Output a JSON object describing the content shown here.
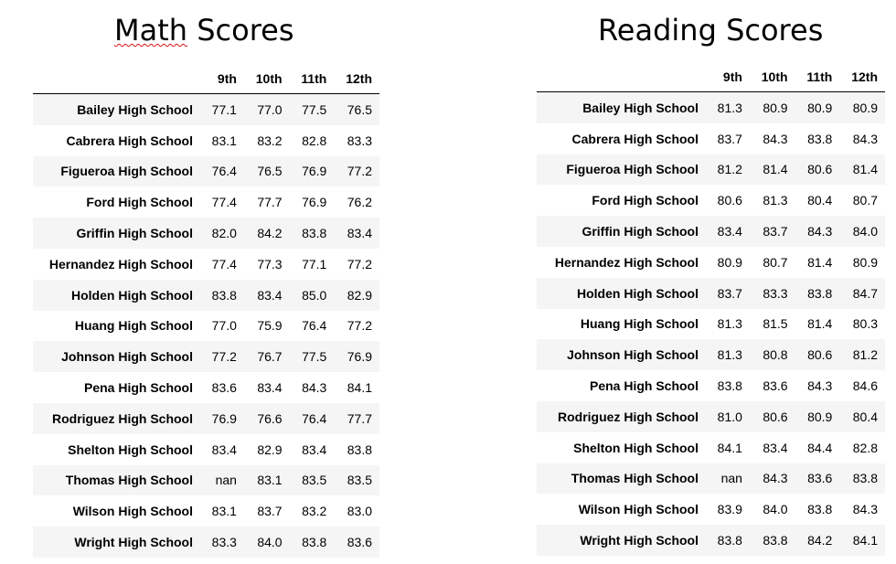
{
  "math": {
    "title_part1": "Math",
    "title_part2": " Scores",
    "columns": [
      "9th",
      "10th",
      "11th",
      "12th"
    ],
    "rows": [
      {
        "school": "Bailey High School",
        "values": [
          "77.1",
          "77.0",
          "77.5",
          "76.5"
        ]
      },
      {
        "school": "Cabrera High School",
        "values": [
          "83.1",
          "83.2",
          "82.8",
          "83.3"
        ]
      },
      {
        "school": "Figueroa High School",
        "values": [
          "76.4",
          "76.5",
          "76.9",
          "77.2"
        ]
      },
      {
        "school": "Ford High School",
        "values": [
          "77.4",
          "77.7",
          "76.9",
          "76.2"
        ]
      },
      {
        "school": "Griffin High School",
        "values": [
          "82.0",
          "84.2",
          "83.8",
          "83.4"
        ]
      },
      {
        "school": "Hernandez High School",
        "values": [
          "77.4",
          "77.3",
          "77.1",
          "77.2"
        ]
      },
      {
        "school": "Holden High School",
        "values": [
          "83.8",
          "83.4",
          "85.0",
          "82.9"
        ]
      },
      {
        "school": "Huang High School",
        "values": [
          "77.0",
          "75.9",
          "76.4",
          "77.2"
        ]
      },
      {
        "school": "Johnson High School",
        "values": [
          "77.2",
          "76.7",
          "77.5",
          "76.9"
        ]
      },
      {
        "school": "Pena High School",
        "values": [
          "83.6",
          "83.4",
          "84.3",
          "84.1"
        ]
      },
      {
        "school": "Rodriguez High School",
        "values": [
          "76.9",
          "76.6",
          "76.4",
          "77.7"
        ]
      },
      {
        "school": "Shelton High School",
        "values": [
          "83.4",
          "82.9",
          "83.4",
          "83.8"
        ]
      },
      {
        "school": "Thomas High School",
        "values": [
          "nan",
          "83.1",
          "83.5",
          "83.5"
        ]
      },
      {
        "school": "Wilson High School",
        "values": [
          "83.1",
          "83.7",
          "83.2",
          "83.0"
        ]
      },
      {
        "school": "Wright High School",
        "values": [
          "83.3",
          "84.0",
          "83.8",
          "83.6"
        ]
      }
    ]
  },
  "reading": {
    "title": "Reading Scores",
    "columns": [
      "9th",
      "10th",
      "11th",
      "12th"
    ],
    "rows": [
      {
        "school": "Bailey High School",
        "values": [
          "81.3",
          "80.9",
          "80.9",
          "80.9"
        ]
      },
      {
        "school": "Cabrera High School",
        "values": [
          "83.7",
          "84.3",
          "83.8",
          "84.3"
        ]
      },
      {
        "school": "Figueroa High School",
        "values": [
          "81.2",
          "81.4",
          "80.6",
          "81.4"
        ]
      },
      {
        "school": "Ford High School",
        "values": [
          "80.6",
          "81.3",
          "80.4",
          "80.7"
        ]
      },
      {
        "school": "Griffin High School",
        "values": [
          "83.4",
          "83.7",
          "84.3",
          "84.0"
        ]
      },
      {
        "school": "Hernandez High School",
        "values": [
          "80.9",
          "80.7",
          "81.4",
          "80.9"
        ]
      },
      {
        "school": "Holden High School",
        "values": [
          "83.7",
          "83.3",
          "83.8",
          "84.7"
        ]
      },
      {
        "school": "Huang High School",
        "values": [
          "81.3",
          "81.5",
          "81.4",
          "80.3"
        ]
      },
      {
        "school": "Johnson High School",
        "values": [
          "81.3",
          "80.8",
          "80.6",
          "81.2"
        ]
      },
      {
        "school": "Pena High School",
        "values": [
          "83.8",
          "83.6",
          "84.3",
          "84.6"
        ]
      },
      {
        "school": "Rodriguez High School",
        "values": [
          "81.0",
          "80.6",
          "80.9",
          "80.4"
        ]
      },
      {
        "school": "Shelton High School",
        "values": [
          "84.1",
          "83.4",
          "84.4",
          "82.8"
        ]
      },
      {
        "school": "Thomas High School",
        "values": [
          "nan",
          "84.3",
          "83.6",
          "83.8"
        ]
      },
      {
        "school": "Wilson High School",
        "values": [
          "83.9",
          "84.0",
          "83.8",
          "84.3"
        ]
      },
      {
        "school": "Wright High School",
        "values": [
          "83.8",
          "83.8",
          "84.2",
          "84.1"
        ]
      }
    ]
  }
}
